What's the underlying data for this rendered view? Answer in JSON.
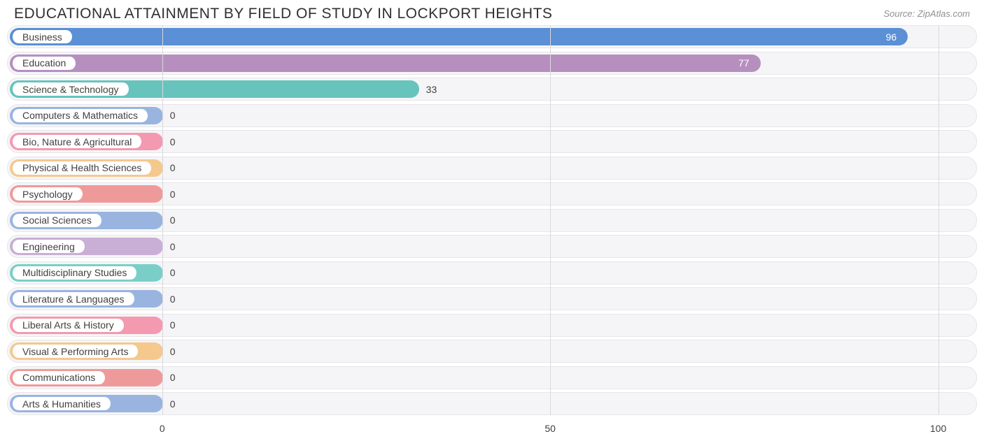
{
  "title": "EDUCATIONAL ATTAINMENT BY FIELD OF STUDY IN LOCKPORT HEIGHTS",
  "source": "Source: ZipAtlas.com",
  "chart": {
    "type": "bar-horizontal",
    "xmin": -20,
    "xmax": 105,
    "background_color": "#ffffff",
    "track_color": "#f5f5f7",
    "track_border": "#e6e6ea",
    "grid_color": "#d9d9dd",
    "value_text_color_inside": "#ffffff",
    "value_text_color_outside": "#404040",
    "label_text_color": "#404040",
    "bars": [
      {
        "label": "Business",
        "value": 96,
        "color": "#5b8fd6"
      },
      {
        "label": "Education",
        "value": 77,
        "color": "#b68fbf"
      },
      {
        "label": "Science & Technology",
        "value": 33,
        "color": "#66c4bd"
      },
      {
        "label": "Computers & Mathematics",
        "value": 0,
        "color": "#9ab4e0"
      },
      {
        "label": "Bio, Nature & Agricultural",
        "value": 0,
        "color": "#f39ab0"
      },
      {
        "label": "Physical & Health Sciences",
        "value": 0,
        "color": "#f5c88d"
      },
      {
        "label": "Psychology",
        "value": 0,
        "color": "#ef9a9a"
      },
      {
        "label": "Social Sciences",
        "value": 0,
        "color": "#9ab4e0"
      },
      {
        "label": "Engineering",
        "value": 0,
        "color": "#c9aed5"
      },
      {
        "label": "Multidisciplinary Studies",
        "value": 0,
        "color": "#79cfc8"
      },
      {
        "label": "Literature & Languages",
        "value": 0,
        "color": "#9ab4e0"
      },
      {
        "label": "Liberal Arts & History",
        "value": 0,
        "color": "#f39ab0"
      },
      {
        "label": "Visual & Performing Arts",
        "value": 0,
        "color": "#f5c88d"
      },
      {
        "label": "Communications",
        "value": 0,
        "color": "#ef9a9a"
      },
      {
        "label": "Arts & Humanities",
        "value": 0,
        "color": "#9ab4e0"
      }
    ],
    "xticks": [
      0,
      50,
      100
    ]
  }
}
